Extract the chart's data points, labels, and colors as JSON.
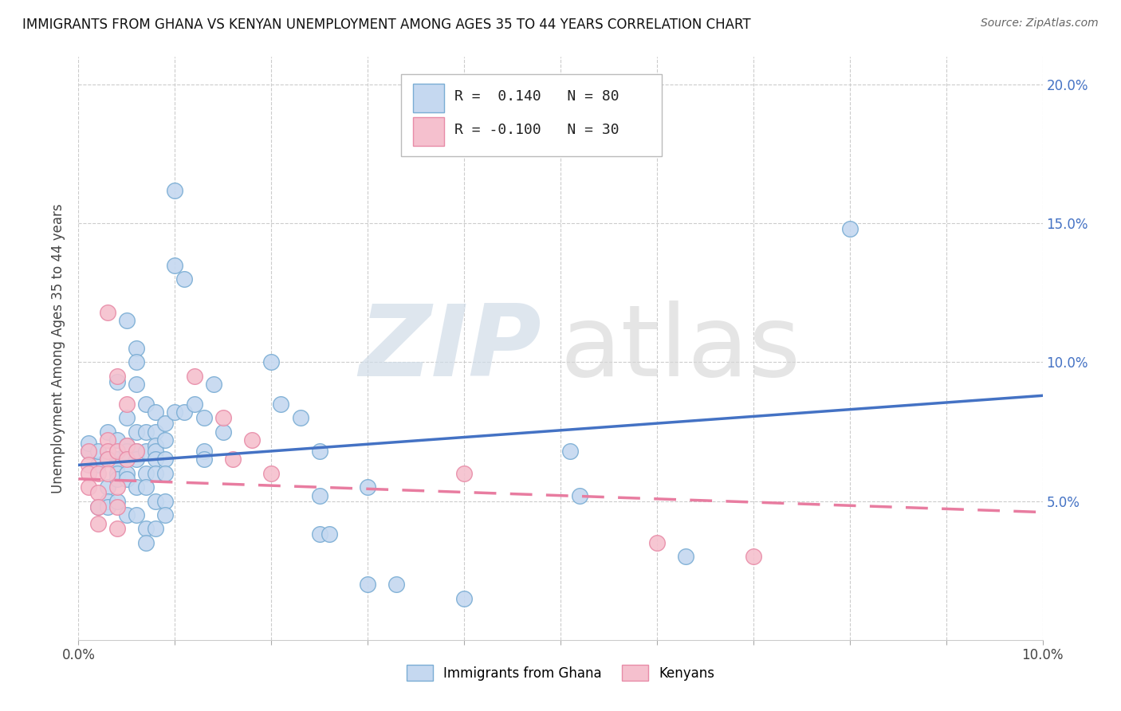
{
  "title": "IMMIGRANTS FROM GHANA VS KENYAN UNEMPLOYMENT AMONG AGES 35 TO 44 YEARS CORRELATION CHART",
  "source": "Source: ZipAtlas.com",
  "ylabel": "Unemployment Among Ages 35 to 44 years",
  "legend1_r": "0.140",
  "legend1_n": "80",
  "legend2_r": "-0.100",
  "legend2_n": "30",
  "blue_fill": "#c5d8f0",
  "pink_fill": "#f5c0ce",
  "blue_edge": "#7aadd4",
  "pink_edge": "#e88ca8",
  "blue_line_color": "#4472c4",
  "pink_line_color": "#e87ca0",
  "blue_scatter": [
    [
      0.001,
      0.068
    ],
    [
      0.001,
      0.071
    ],
    [
      0.002,
      0.063
    ],
    [
      0.002,
      0.048
    ],
    [
      0.002,
      0.068
    ],
    [
      0.003,
      0.075
    ],
    [
      0.003,
      0.065
    ],
    [
      0.003,
      0.055
    ],
    [
      0.003,
      0.05
    ],
    [
      0.003,
      0.048
    ],
    [
      0.004,
      0.093
    ],
    [
      0.004,
      0.072
    ],
    [
      0.004,
      0.065
    ],
    [
      0.004,
      0.063
    ],
    [
      0.004,
      0.06
    ],
    [
      0.004,
      0.058
    ],
    [
      0.004,
      0.05
    ],
    [
      0.005,
      0.115
    ],
    [
      0.005,
      0.08
    ],
    [
      0.005,
      0.07
    ],
    [
      0.005,
      0.068
    ],
    [
      0.005,
      0.065
    ],
    [
      0.005,
      0.06
    ],
    [
      0.005,
      0.058
    ],
    [
      0.005,
      0.045
    ],
    [
      0.006,
      0.105
    ],
    [
      0.006,
      0.1
    ],
    [
      0.006,
      0.092
    ],
    [
      0.006,
      0.075
    ],
    [
      0.006,
      0.068
    ],
    [
      0.006,
      0.065
    ],
    [
      0.006,
      0.055
    ],
    [
      0.006,
      0.045
    ],
    [
      0.007,
      0.085
    ],
    [
      0.007,
      0.075
    ],
    [
      0.007,
      0.068
    ],
    [
      0.007,
      0.06
    ],
    [
      0.007,
      0.055
    ],
    [
      0.007,
      0.04
    ],
    [
      0.007,
      0.035
    ],
    [
      0.008,
      0.082
    ],
    [
      0.008,
      0.075
    ],
    [
      0.008,
      0.07
    ],
    [
      0.008,
      0.068
    ],
    [
      0.008,
      0.065
    ],
    [
      0.008,
      0.06
    ],
    [
      0.008,
      0.05
    ],
    [
      0.008,
      0.04
    ],
    [
      0.009,
      0.078
    ],
    [
      0.009,
      0.072
    ],
    [
      0.009,
      0.065
    ],
    [
      0.009,
      0.06
    ],
    [
      0.009,
      0.05
    ],
    [
      0.009,
      0.045
    ],
    [
      0.01,
      0.162
    ],
    [
      0.01,
      0.135
    ],
    [
      0.01,
      0.082
    ],
    [
      0.011,
      0.13
    ],
    [
      0.011,
      0.082
    ],
    [
      0.012,
      0.085
    ],
    [
      0.013,
      0.08
    ],
    [
      0.013,
      0.068
    ],
    [
      0.013,
      0.065
    ],
    [
      0.014,
      0.092
    ],
    [
      0.015,
      0.075
    ],
    [
      0.02,
      0.1
    ],
    [
      0.021,
      0.085
    ],
    [
      0.023,
      0.08
    ],
    [
      0.025,
      0.068
    ],
    [
      0.025,
      0.052
    ],
    [
      0.025,
      0.038
    ],
    [
      0.026,
      0.038
    ],
    [
      0.03,
      0.055
    ],
    [
      0.03,
      0.02
    ],
    [
      0.033,
      0.02
    ],
    [
      0.04,
      0.015
    ],
    [
      0.051,
      0.068
    ],
    [
      0.052,
      0.052
    ],
    [
      0.063,
      0.03
    ],
    [
      0.08,
      0.148
    ]
  ],
  "pink_scatter": [
    [
      0.001,
      0.068
    ],
    [
      0.001,
      0.063
    ],
    [
      0.001,
      0.06
    ],
    [
      0.001,
      0.055
    ],
    [
      0.002,
      0.06
    ],
    [
      0.002,
      0.053
    ],
    [
      0.002,
      0.048
    ],
    [
      0.002,
      0.042
    ],
    [
      0.003,
      0.118
    ],
    [
      0.003,
      0.072
    ],
    [
      0.003,
      0.068
    ],
    [
      0.003,
      0.065
    ],
    [
      0.003,
      0.06
    ],
    [
      0.004,
      0.095
    ],
    [
      0.004,
      0.068
    ],
    [
      0.004,
      0.055
    ],
    [
      0.004,
      0.048
    ],
    [
      0.004,
      0.04
    ],
    [
      0.005,
      0.085
    ],
    [
      0.005,
      0.07
    ],
    [
      0.005,
      0.065
    ],
    [
      0.006,
      0.068
    ],
    [
      0.012,
      0.095
    ],
    [
      0.015,
      0.08
    ],
    [
      0.016,
      0.065
    ],
    [
      0.018,
      0.072
    ],
    [
      0.02,
      0.06
    ],
    [
      0.04,
      0.06
    ],
    [
      0.06,
      0.035
    ],
    [
      0.07,
      0.03
    ]
  ],
  "blue_line": [
    [
      0.0,
      0.063
    ],
    [
      0.1,
      0.088
    ]
  ],
  "pink_line": [
    [
      0.0,
      0.058
    ],
    [
      0.1,
      0.046
    ]
  ],
  "watermark_zip": "ZIP",
  "watermark_atlas": "atlas",
  "xlim": [
    0.0,
    0.1
  ],
  "ylim": [
    0.0,
    0.21
  ],
  "ytick_vals": [
    0.05,
    0.1,
    0.15,
    0.2
  ]
}
